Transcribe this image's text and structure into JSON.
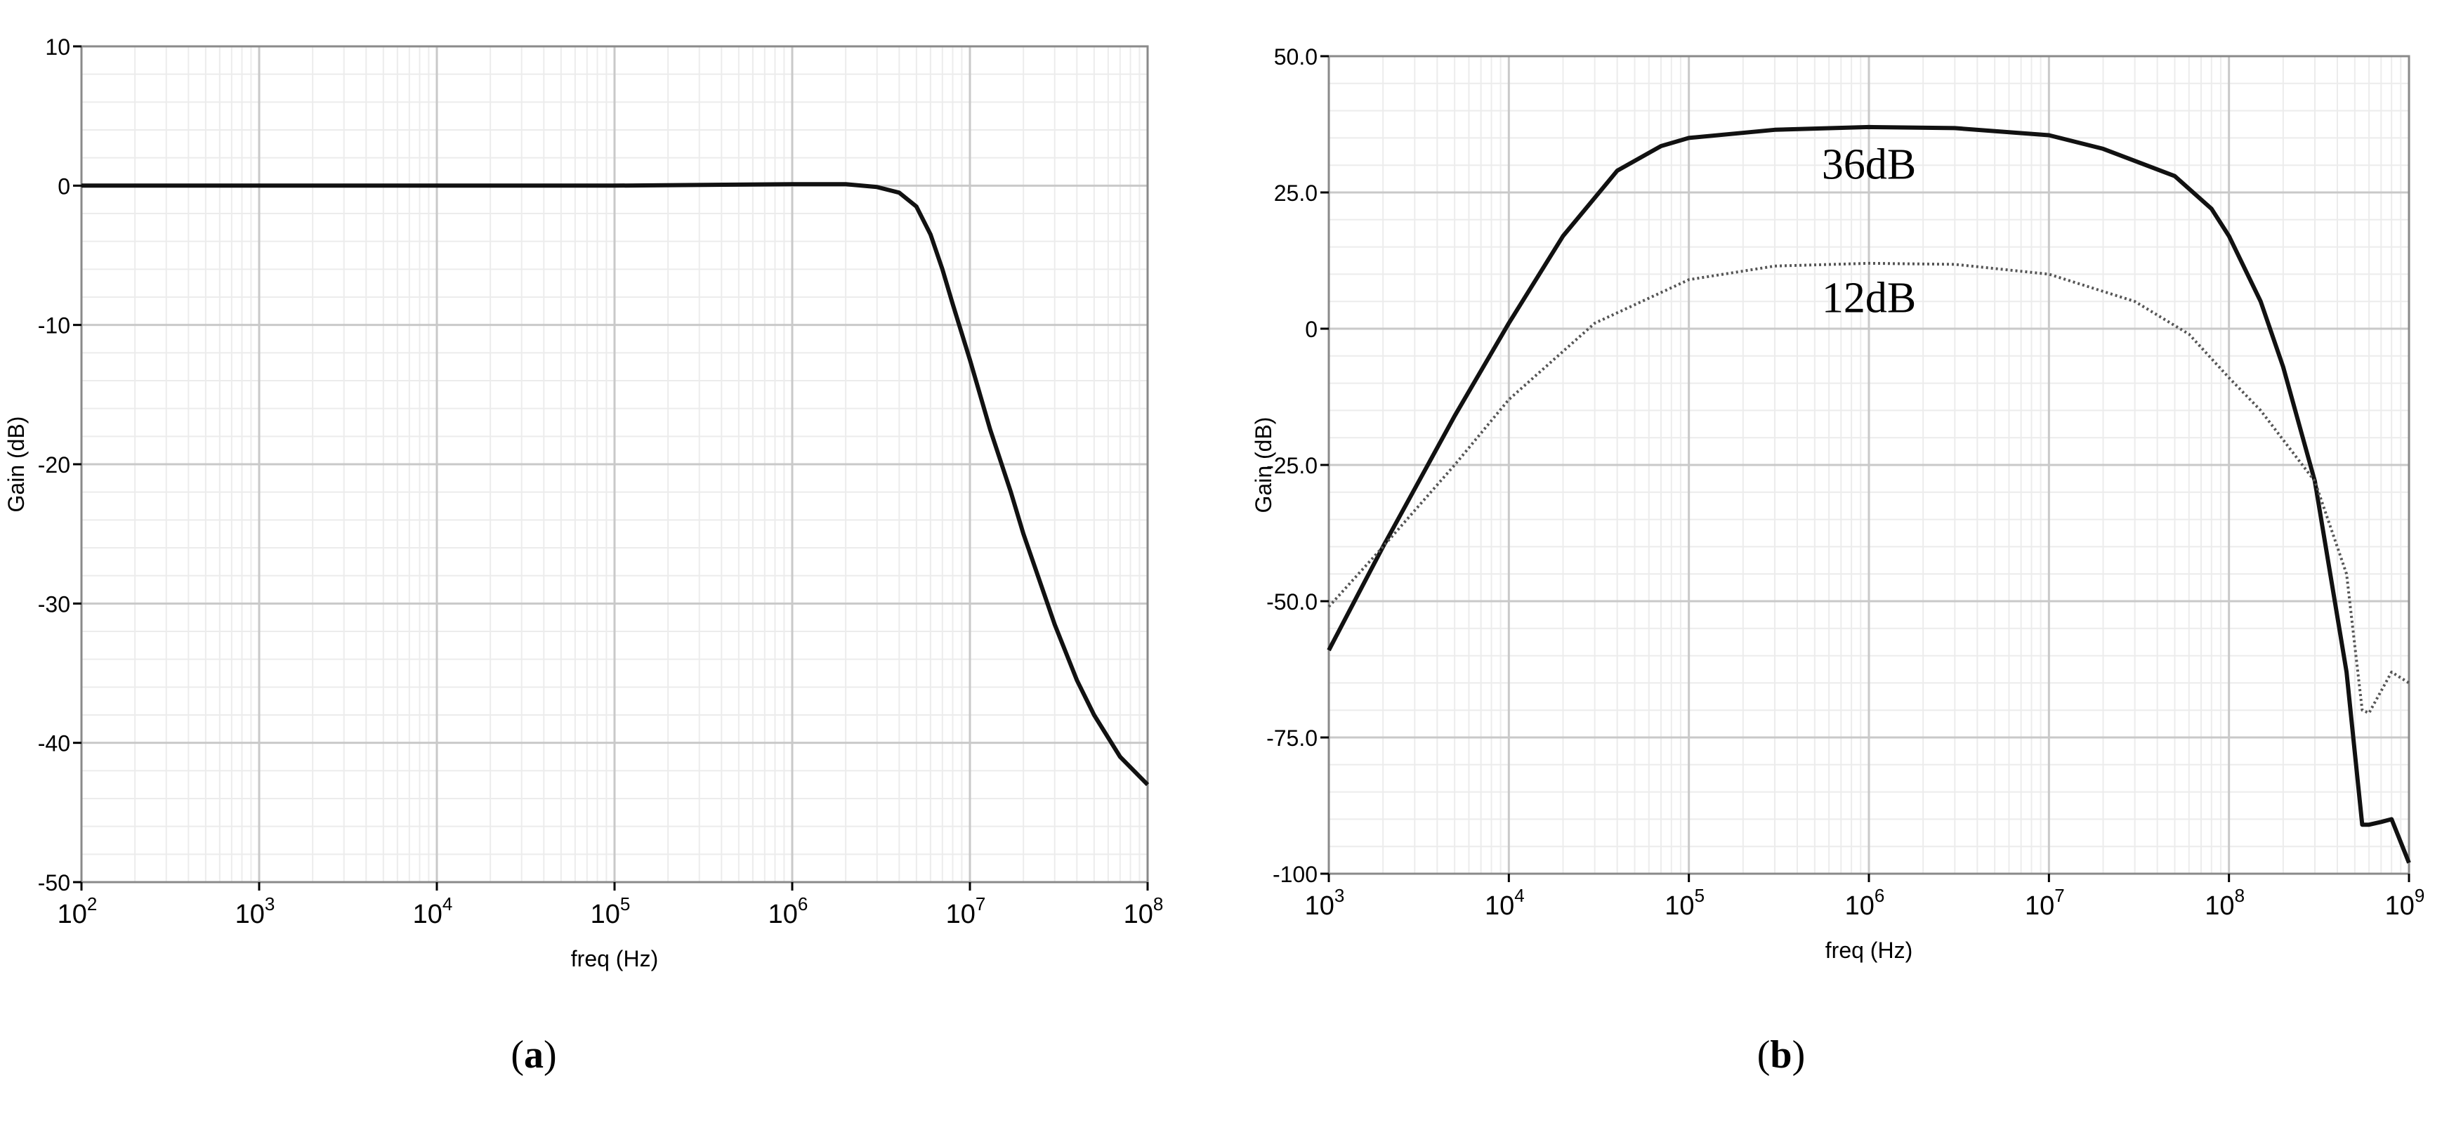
{
  "figure": {
    "panels": [
      {
        "label": "a"
      },
      {
        "label": "b"
      }
    ]
  },
  "chart_data": [
    {
      "type": "line",
      "panel": "a",
      "xlabel": "freq (Hz)",
      "ylabel": "Gain (dB)",
      "x_scale": "log",
      "xlim": [
        100,
        100000000
      ],
      "ylim": [
        -50,
        10
      ],
      "x_ticks": [
        {
          "base": "10",
          "exp": "2",
          "value": 100
        },
        {
          "base": "10",
          "exp": "3",
          "value": 1000
        },
        {
          "base": "10",
          "exp": "4",
          "value": 10000
        },
        {
          "base": "10",
          "exp": "5",
          "value": 100000
        },
        {
          "base": "10",
          "exp": "6",
          "value": 1000000
        },
        {
          "base": "10",
          "exp": "7",
          "value": 10000000
        },
        {
          "base": "10",
          "exp": "8",
          "value": 100000000
        }
      ],
      "y_ticks": [
        {
          "label": "10",
          "value": 10
        },
        {
          "label": "0",
          "value": 0
        },
        {
          "label": "-10",
          "value": -10
        },
        {
          "label": "-20",
          "value": -20
        },
        {
          "label": "-30",
          "value": -30
        },
        {
          "label": "-40",
          "value": -40
        },
        {
          "label": "-50",
          "value": -50
        }
      ],
      "grid": true,
      "series": [
        {
          "style": "solid",
          "x": [
            100,
            1000,
            10000,
            100000,
            1000000,
            2000000,
            3000000,
            4000000,
            5000000,
            6000000,
            7000000,
            8000000,
            10000000,
            13000000,
            17000000,
            20000000,
            30000000,
            40000000,
            50000000,
            70000000,
            100000000
          ],
          "y": [
            0,
            0,
            0,
            0,
            0.1,
            0.1,
            -0.1,
            -0.5,
            -1.5,
            -3.5,
            -6,
            -8.5,
            -12.5,
            -17.5,
            -22,
            -25,
            -31.5,
            -35.5,
            -38,
            -41,
            -43
          ]
        }
      ]
    },
    {
      "type": "line",
      "panel": "b",
      "xlabel": "freq (Hz)",
      "ylabel": "Gain (dB)",
      "x_scale": "log",
      "xlim": [
        1000,
        1000000000
      ],
      "ylim": [
        -100,
        50
      ],
      "x_ticks": [
        {
          "base": "10",
          "exp": "3",
          "value": 1000
        },
        {
          "base": "10",
          "exp": "4",
          "value": 10000
        },
        {
          "base": "10",
          "exp": "5",
          "value": 100000
        },
        {
          "base": "10",
          "exp": "6",
          "value": 1000000
        },
        {
          "base": "10",
          "exp": "7",
          "value": 10000000
        },
        {
          "base": "10",
          "exp": "8",
          "value": 100000000
        },
        {
          "base": "10",
          "exp": "9",
          "value": 1000000000
        }
      ],
      "y_ticks": [
        {
          "label": "50.0",
          "value": 50
        },
        {
          "label": "25.0",
          "value": 25
        },
        {
          "label": "0",
          "value": 0
        },
        {
          "label": "-25.0",
          "value": -25
        },
        {
          "label": "-50.0",
          "value": -50
        },
        {
          "label": "-75.0",
          "value": -75
        },
        {
          "label": "-100",
          "value": -100
        }
      ],
      "grid": true,
      "annotations": [
        {
          "text": "36dB",
          "x": 1000000,
          "y": 27.5
        },
        {
          "text": "12dB",
          "x": 1000000,
          "y": 3
        }
      ],
      "series": [
        {
          "style": "solid",
          "x": [
            1000,
            2000,
            5000,
            10000,
            20000,
            40000,
            70000,
            100000,
            300000,
            1000000,
            3000000,
            10000000,
            20000000,
            50000000,
            80000000,
            100000000,
            150000000,
            200000000,
            300000000,
            450000000,
            550000000,
            600000000,
            700000000,
            800000000,
            1000000000
          ],
          "y": [
            -59,
            -40,
            -16,
            1,
            17,
            29,
            33.5,
            35,
            36.5,
            37,
            36.8,
            35.5,
            33,
            28,
            22,
            17,
            5,
            -7,
            -28,
            -63,
            -91,
            -91,
            -90.5,
            -90,
            -98
          ]
        },
        {
          "style": "dotted",
          "x": [
            1000,
            2000,
            5000,
            10000,
            30000,
            100000,
            300000,
            1000000,
            3000000,
            10000000,
            30000000,
            60000000,
            100000000,
            150000000,
            300000000,
            450000000,
            550000000,
            600000000,
            800000000,
            1000000000
          ],
          "y": [
            -51,
            -40,
            -25,
            -13,
            1,
            9,
            11.5,
            12,
            11.8,
            10,
            5,
            -1,
            -9,
            -15,
            -28,
            -45,
            -70,
            -70.5,
            -63,
            -65
          ]
        }
      ]
    }
  ]
}
